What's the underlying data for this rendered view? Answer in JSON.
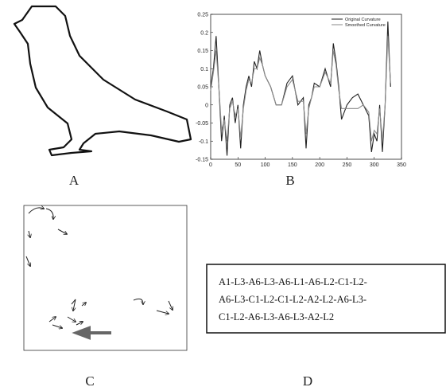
{
  "panels": {
    "a": "A",
    "b": "B",
    "c": "C",
    "d": "D"
  },
  "sequence": {
    "lines": [
      "A1-L3-A6-L3-A6-L1-A6-L2-C1-L2-",
      "A6-L3-C1-L2-C1-L2-A2-L2-A6-L3-",
      "C1-L2-A6-L3-A6-L3-A2-L2"
    ]
  },
  "chart_data": {
    "type": "line",
    "x": [
      0,
      5,
      10,
      15,
      20,
      25,
      30,
      35,
      40,
      45,
      50,
      55,
      60,
      65,
      70,
      75,
      80,
      85,
      90,
      95,
      100,
      110,
      120,
      130,
      140,
      150,
      160,
      170,
      175,
      180,
      185,
      190,
      200,
      210,
      220,
      225,
      230,
      235,
      240,
      250,
      260,
      270,
      280,
      290,
      295,
      300,
      305,
      310,
      315,
      320,
      325,
      330
    ],
    "series": [
      {
        "name": "Original Curvature",
        "color": "#222222",
        "values": [
          0.05,
          0.1,
          0.19,
          0.05,
          -0.1,
          -0.03,
          -0.14,
          0.0,
          0.02,
          -0.05,
          0.0,
          -0.12,
          0.0,
          0.05,
          0.08,
          0.05,
          0.12,
          0.1,
          0.15,
          0.11,
          0.08,
          0.05,
          0.0,
          0.0,
          0.06,
          0.08,
          0.0,
          0.02,
          -0.12,
          0.0,
          0.02,
          0.06,
          0.05,
          0.1,
          0.05,
          0.17,
          0.12,
          0.05,
          -0.04,
          0.0,
          0.02,
          0.03,
          0.0,
          -0.03,
          -0.13,
          -0.08,
          -0.1,
          0.0,
          -0.13,
          0.0,
          0.23,
          0.05
        ]
      },
      {
        "name": "Smoothed Curvature",
        "color": "#8a8a8a",
        "values": [
          0.04,
          0.09,
          0.15,
          0.05,
          -0.07,
          -0.04,
          -0.1,
          -0.01,
          0.01,
          -0.03,
          -0.01,
          -0.09,
          -0.01,
          0.04,
          0.07,
          0.06,
          0.1,
          0.1,
          0.13,
          0.11,
          0.08,
          0.05,
          0.0,
          0.0,
          0.05,
          0.07,
          0.01,
          0.01,
          -0.08,
          -0.01,
          0.02,
          0.05,
          0.05,
          0.09,
          0.06,
          0.15,
          0.11,
          0.04,
          -0.01,
          -0.01,
          -0.01,
          -0.01,
          0.0,
          -0.02,
          -0.1,
          -0.07,
          -0.08,
          -0.01,
          -0.1,
          0.0,
          0.19,
          0.06
        ]
      }
    ],
    "xlim": [
      0,
      350
    ],
    "xticks": [
      0,
      50,
      100,
      150,
      200,
      250,
      300,
      350
    ],
    "ylim": [
      -0.15,
      0.25
    ],
    "yticks": [
      -0.15,
      -0.1,
      -0.05,
      0,
      0.05,
      0.1,
      0.15,
      0.2,
      0.25
    ],
    "legend": "upper-right"
  }
}
